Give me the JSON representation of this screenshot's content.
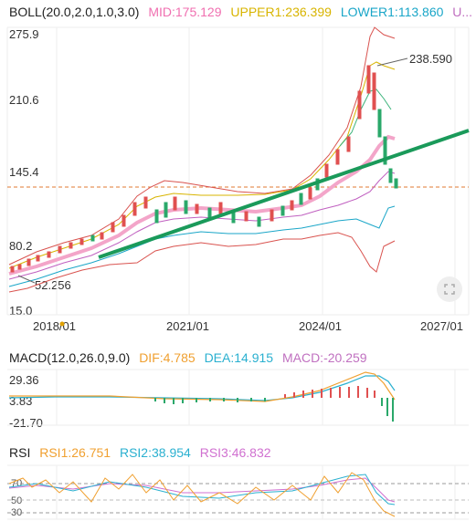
{
  "boll": {
    "title": "BOLL(20.0,2.0,1.0,3.0)",
    "mid": "MID:175.129",
    "upper1": "UPPER1:236.399",
    "lower1": "LOWER1:113.860",
    "more": "U..."
  },
  "price_axis": [
    "275.9",
    "210.6",
    "145.4",
    "80.2",
    "15.0"
  ],
  "price_callouts": {
    "high": "238.590",
    "low": "52.256"
  },
  "date_axis": [
    "2018/01",
    "2021/01",
    "2024/01",
    "2027/01"
  ],
  "macd": {
    "title": "MACD(12.0,26.0,9.0)",
    "dif": "DIF:4.785",
    "dea": "DEA:14.915",
    "macd": "MACD:-20.259",
    "axis": [
      "29.36",
      "3.83",
      "-21.70"
    ]
  },
  "rsi": {
    "rsi1": "RSI1:26.751",
    "rsi2": "RSI2:38.954",
    "rsi3": "RSI3:46.832",
    "title": "RSI",
    "axis": [
      "70",
      "50",
      "30"
    ]
  },
  "colors": {
    "mid": "#f06fb0",
    "upper": "#d8b400",
    "lower": "#1aa6c8",
    "outer": "#d9534f",
    "trend": "#1a9a5a",
    "up": "#e05050",
    "down": "#2aa86a",
    "dif": "#f0a030",
    "dea": "#2ab0d0",
    "rsi3": "#d070d0"
  },
  "icons": {
    "expand": "expand-icon"
  }
}
